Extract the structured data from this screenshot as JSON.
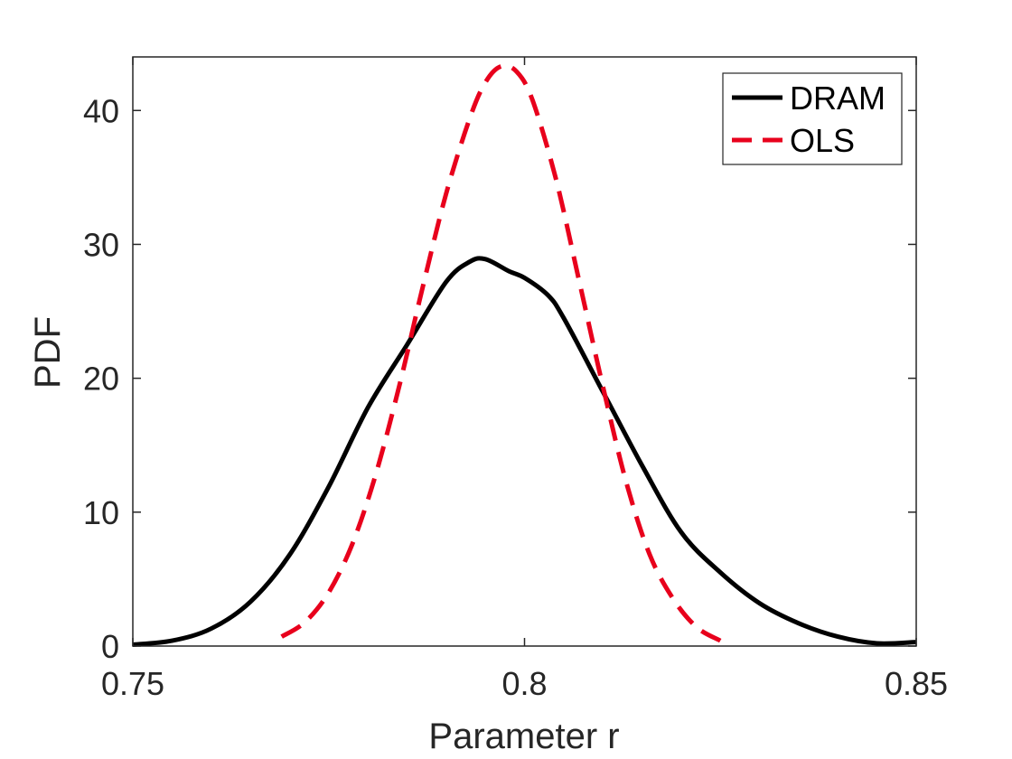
{
  "chart_data": {
    "type": "line",
    "xlabel": "Parameter r",
    "ylabel": "PDF",
    "xlim": [
      0.75,
      0.85
    ],
    "ylim": [
      0,
      44
    ],
    "x_ticks": [
      0.75,
      0.8,
      0.85
    ],
    "x_tick_labels": [
      "0.75",
      "0.8",
      "0.85"
    ],
    "y_ticks": [
      0,
      10,
      20,
      30,
      40
    ],
    "y_tick_labels": [
      "0",
      "10",
      "20",
      "30",
      "40"
    ],
    "grid": false,
    "legend": {
      "position": "top-right",
      "entries": [
        "DRAM",
        "OLS"
      ]
    },
    "series": [
      {
        "name": "DRAM",
        "color": "#000000",
        "style": "solid",
        "x": [
          0.75,
          0.755,
          0.76,
          0.765,
          0.77,
          0.775,
          0.78,
          0.785,
          0.79,
          0.793,
          0.795,
          0.798,
          0.8,
          0.803,
          0.805,
          0.81,
          0.815,
          0.82,
          0.825,
          0.83,
          0.835,
          0.84,
          0.845,
          0.85
        ],
        "y": [
          0.1,
          0.4,
          1.3,
          3.3,
          6.8,
          11.9,
          17.8,
          22.5,
          27.2,
          28.7,
          28.9,
          28.0,
          27.5,
          26.2,
          24.5,
          19.0,
          13.5,
          8.5,
          5.5,
          3.2,
          1.7,
          0.7,
          0.2,
          0.3
        ]
      },
      {
        "name": "OLS",
        "color": "#e8001c",
        "style": "dashed",
        "x": [
          0.769,
          0.772,
          0.775,
          0.778,
          0.781,
          0.784,
          0.787,
          0.79,
          0.793,
          0.795,
          0.797,
          0.799,
          0.801,
          0.804,
          0.807,
          0.81,
          0.813,
          0.816,
          0.819,
          0.822,
          0.825
        ],
        "y": [
          0.7,
          1.8,
          4.0,
          7.6,
          12.8,
          19.4,
          26.8,
          33.8,
          39.4,
          42.1,
          43.3,
          42.9,
          40.8,
          34.9,
          27.2,
          19.4,
          12.2,
          6.8,
          3.5,
          1.4,
          0.4
        ]
      }
    ]
  }
}
